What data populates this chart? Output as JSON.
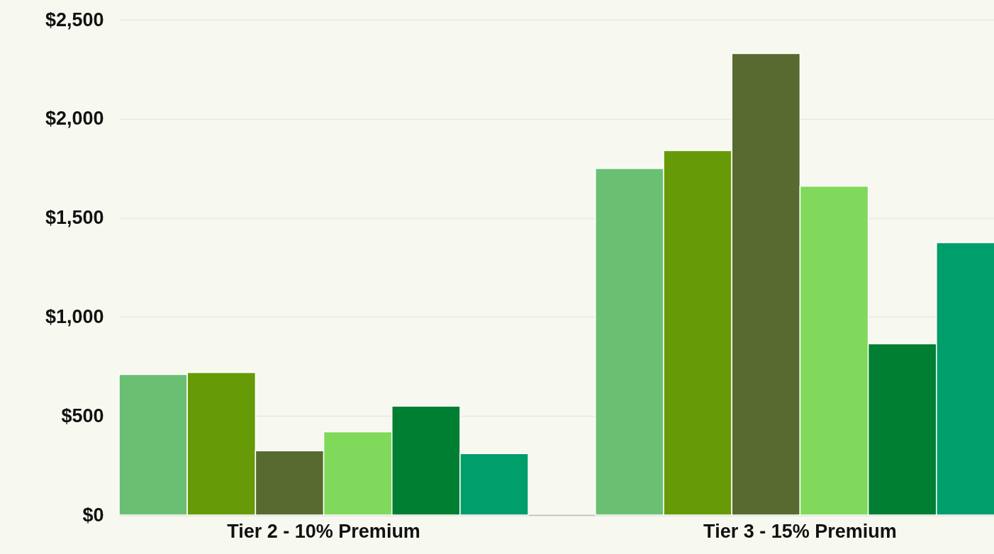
{
  "chart_data": {
    "type": "bar",
    "categories": [
      "Tier 2 - 10% Premium",
      "Tier 3 - 15% Premium"
    ],
    "series": [
      {
        "color": "#6abf73",
        "values": [
          710,
          1750
        ]
      },
      {
        "color": "#669a06",
        "values": [
          720,
          1840
        ]
      },
      {
        "color": "#586a2f",
        "values": [
          325,
          2330
        ]
      },
      {
        "color": "#80d95a",
        "values": [
          420,
          1660
        ]
      },
      {
        "color": "#007f32",
        "values": [
          550,
          865
        ]
      },
      {
        "color": "#009e6a",
        "values": [
          310,
          1375
        ]
      }
    ],
    "ylim": [
      0,
      2500
    ],
    "yticks": [
      {
        "value": 0,
        "label": "$0"
      },
      {
        "value": 500,
        "label": "$500"
      },
      {
        "value": 1000,
        "label": "$1,000"
      },
      {
        "value": 1500,
        "label": "$1,500"
      },
      {
        "value": 2000,
        "label": "$2,000"
      },
      {
        "value": 2500,
        "label": "$2,500"
      }
    ],
    "grid": "y"
  }
}
